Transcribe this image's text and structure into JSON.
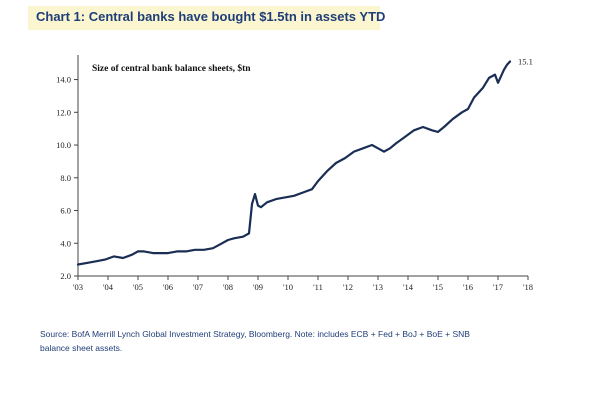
{
  "title": "Chart 1: Central banks have bought $1.5tn in assets YTD",
  "source_lines": [
    "Source: BofA Merrill Lynch Global Investment Strategy, Bloomberg. Note: includes ECB + Fed + BoJ + BoE + SNB",
    "balance sheet assets."
  ],
  "chart_data": {
    "type": "line",
    "subtitle": "Size of central bank balance sheets, $tn",
    "end_label": "15.1",
    "xlabel": "",
    "ylabel": "",
    "x_ticks": [
      "'03",
      "'04",
      "'05",
      "'06",
      "'07",
      "'08",
      "'09",
      "'10",
      "'11",
      "'12",
      "'13",
      "'14",
      "'15",
      "'16",
      "'17",
      "'18"
    ],
    "x_range": [
      2003,
      2018
    ],
    "y_ticks": [
      "2.0",
      "4.0",
      "6.0",
      "8.0",
      "10.0",
      "12.0",
      "14.0"
    ],
    "ylim": [
      2,
      15.5
    ],
    "grid": false,
    "colors": {
      "line": "#1a2e55",
      "axis": "#444444",
      "title": "#1f3e78"
    },
    "series": [
      {
        "x": [
          2003.0,
          2003.3,
          2003.6,
          2003.9,
          2004.2,
          2004.5,
          2004.8,
          2005.0,
          2005.2,
          2005.5,
          2005.8,
          2006.0,
          2006.3,
          2006.6,
          2006.9,
          2007.2,
          2007.5,
          2007.8,
          2008.0,
          2008.2,
          2008.5,
          2008.7,
          2008.8,
          2008.9,
          2009.0,
          2009.1,
          2009.3,
          2009.6,
          2009.9,
          2010.2,
          2010.5,
          2010.8,
          2011.0,
          2011.3,
          2011.6,
          2011.9,
          2012.2,
          2012.5,
          2012.8,
          2013.0,
          2013.2,
          2013.4,
          2013.6,
          2013.9,
          2014.2,
          2014.5,
          2014.8,
          2015.0,
          2015.2,
          2015.5,
          2015.8,
          2016.0,
          2016.2,
          2016.5,
          2016.7,
          2016.9,
          2017.0,
          2017.1,
          2017.2,
          2017.3,
          2017.4
        ],
        "values": [
          2.7,
          2.8,
          2.9,
          3.0,
          3.2,
          3.1,
          3.3,
          3.5,
          3.5,
          3.4,
          3.4,
          3.4,
          3.5,
          3.5,
          3.6,
          3.6,
          3.7,
          4.0,
          4.2,
          4.3,
          4.4,
          4.6,
          6.4,
          7.0,
          6.3,
          6.2,
          6.5,
          6.7,
          6.8,
          6.9,
          7.1,
          7.3,
          7.8,
          8.4,
          8.9,
          9.2,
          9.6,
          9.8,
          10.0,
          9.8,
          9.6,
          9.8,
          10.1,
          10.5,
          10.9,
          11.1,
          10.9,
          10.8,
          11.1,
          11.6,
          12.0,
          12.2,
          12.9,
          13.5,
          14.1,
          14.3,
          13.8,
          14.2,
          14.6,
          14.9,
          15.1
        ]
      }
    ]
  }
}
